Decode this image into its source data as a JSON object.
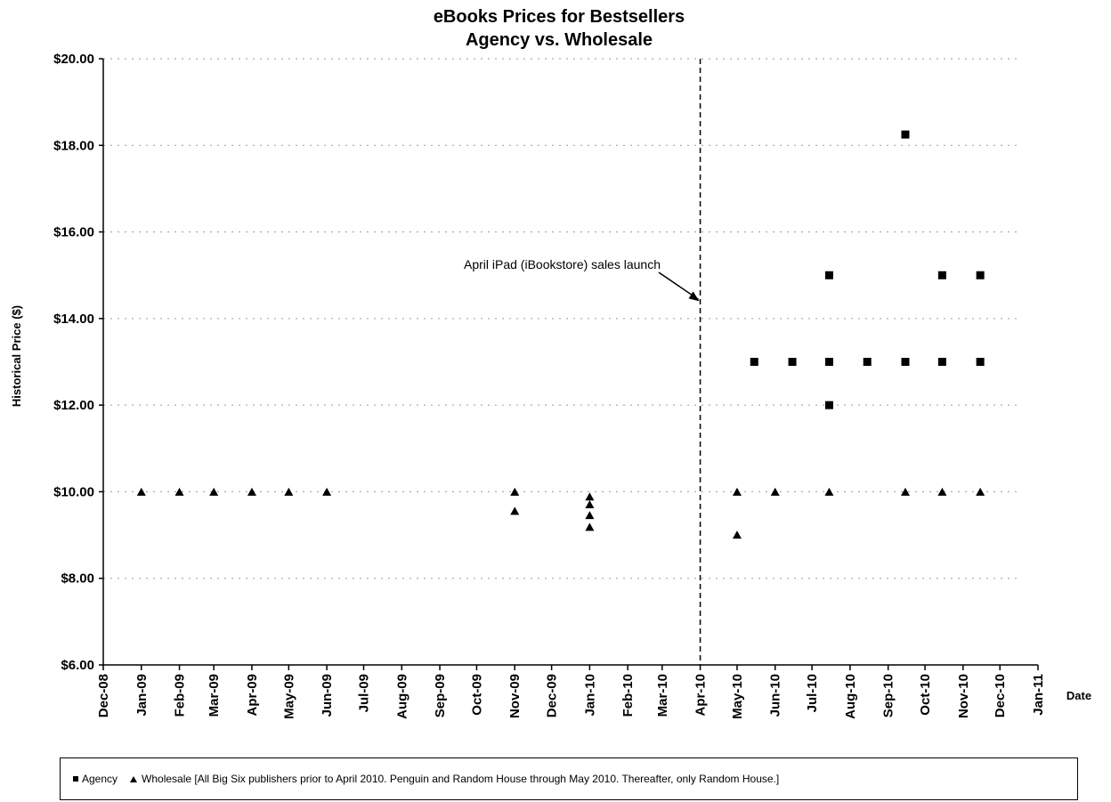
{
  "chart_data": {
    "type": "scatter",
    "title": "eBooks Prices for Bestsellers",
    "subtitle": "Agency vs. Wholesale",
    "xlabel": "Date",
    "ylabel": "Historical Price ($)",
    "x_tick_labels": [
      "Dec-08",
      "Jan-09",
      "Feb-09",
      "Mar-09",
      "Apr-09",
      "May-09",
      "Jun-09",
      "Jul-09",
      "Aug-09",
      "Sep-09",
      "Oct-09",
      "Nov-09",
      "Dec-09",
      "Jan-10",
      "Feb-10",
      "Mar-10",
      "Apr-10",
      "May-10",
      "Jun-10",
      "Jul-10",
      "Aug-10",
      "Sep-10",
      "Oct-10",
      "Nov-10",
      "Dec-10",
      "Jan-11"
    ],
    "xlim": [
      "2008-12-01",
      "2011-01-01"
    ],
    "ylim": [
      6,
      20
    ],
    "y_tick_labels": [
      "$6.00",
      "$8.00",
      "$10.00",
      "$12.00",
      "$14.00",
      "$16.00",
      "$18.00",
      "$20.00"
    ],
    "y_ticks": [
      6,
      8,
      10,
      12,
      14,
      16,
      18,
      20
    ],
    "grid": "horizontal dotted",
    "series": [
      {
        "name": "Agency",
        "marker": "square",
        "points": [
          {
            "x": "2010-05-15",
            "y": 13.0
          },
          {
            "x": "2010-06-15",
            "y": 13.0
          },
          {
            "x": "2010-07-15",
            "y": 12.0
          },
          {
            "x": "2010-07-15",
            "y": 13.0
          },
          {
            "x": "2010-07-15",
            "y": 15.0
          },
          {
            "x": "2010-08-15",
            "y": 13.0
          },
          {
            "x": "2010-09-15",
            "y": 13.0
          },
          {
            "x": "2010-09-15",
            "y": 18.25
          },
          {
            "x": "2010-10-15",
            "y": 13.0
          },
          {
            "x": "2010-10-15",
            "y": 15.0
          },
          {
            "x": "2010-11-15",
            "y": 13.0
          },
          {
            "x": "2010-11-15",
            "y": 15.0
          }
        ]
      },
      {
        "name": "Wholesale",
        "marker": "triangle",
        "points": [
          {
            "x": "2009-01-01",
            "y": 9.99
          },
          {
            "x": "2009-02-01",
            "y": 9.99
          },
          {
            "x": "2009-03-01",
            "y": 9.99
          },
          {
            "x": "2009-04-01",
            "y": 9.99
          },
          {
            "x": "2009-05-01",
            "y": 9.99
          },
          {
            "x": "2009-06-01",
            "y": 9.99
          },
          {
            "x": "2009-11-01",
            "y": 9.99
          },
          {
            "x": "2009-11-01",
            "y": 9.55
          },
          {
            "x": "2010-01-01",
            "y": 9.88
          },
          {
            "x": "2010-01-01",
            "y": 9.7
          },
          {
            "x": "2010-01-01",
            "y": 9.45
          },
          {
            "x": "2010-01-01",
            "y": 9.18
          },
          {
            "x": "2010-05-01",
            "y": 9.99
          },
          {
            "x": "2010-05-01",
            "y": 9.0
          },
          {
            "x": "2010-06-01",
            "y": 9.99
          },
          {
            "x": "2010-07-15",
            "y": 9.99
          },
          {
            "x": "2010-09-15",
            "y": 9.99
          },
          {
            "x": "2010-10-15",
            "y": 9.99
          },
          {
            "x": "2010-11-15",
            "y": 9.99
          }
        ]
      }
    ],
    "annotations": [
      {
        "text": "April iPad (iBookstore) sales launch",
        "x": "2010-04-01",
        "y": 14.4,
        "type": "arrow-and-vertical-dashed-line"
      }
    ],
    "legend_position": "bottom",
    "legend_text": "■ Agency   ▲ Wholesale [All Big Six publishers prior to April 2010.  Penguin and Random House through May 2010.  Thereafter, only Random House.]"
  },
  "legend": {
    "agency_label": "Agency",
    "wholesale_label": "Wholesale [All Big Six publishers prior to April 2010.  Penguin and Random House through May 2010.  Thereafter, only Random House.]"
  }
}
